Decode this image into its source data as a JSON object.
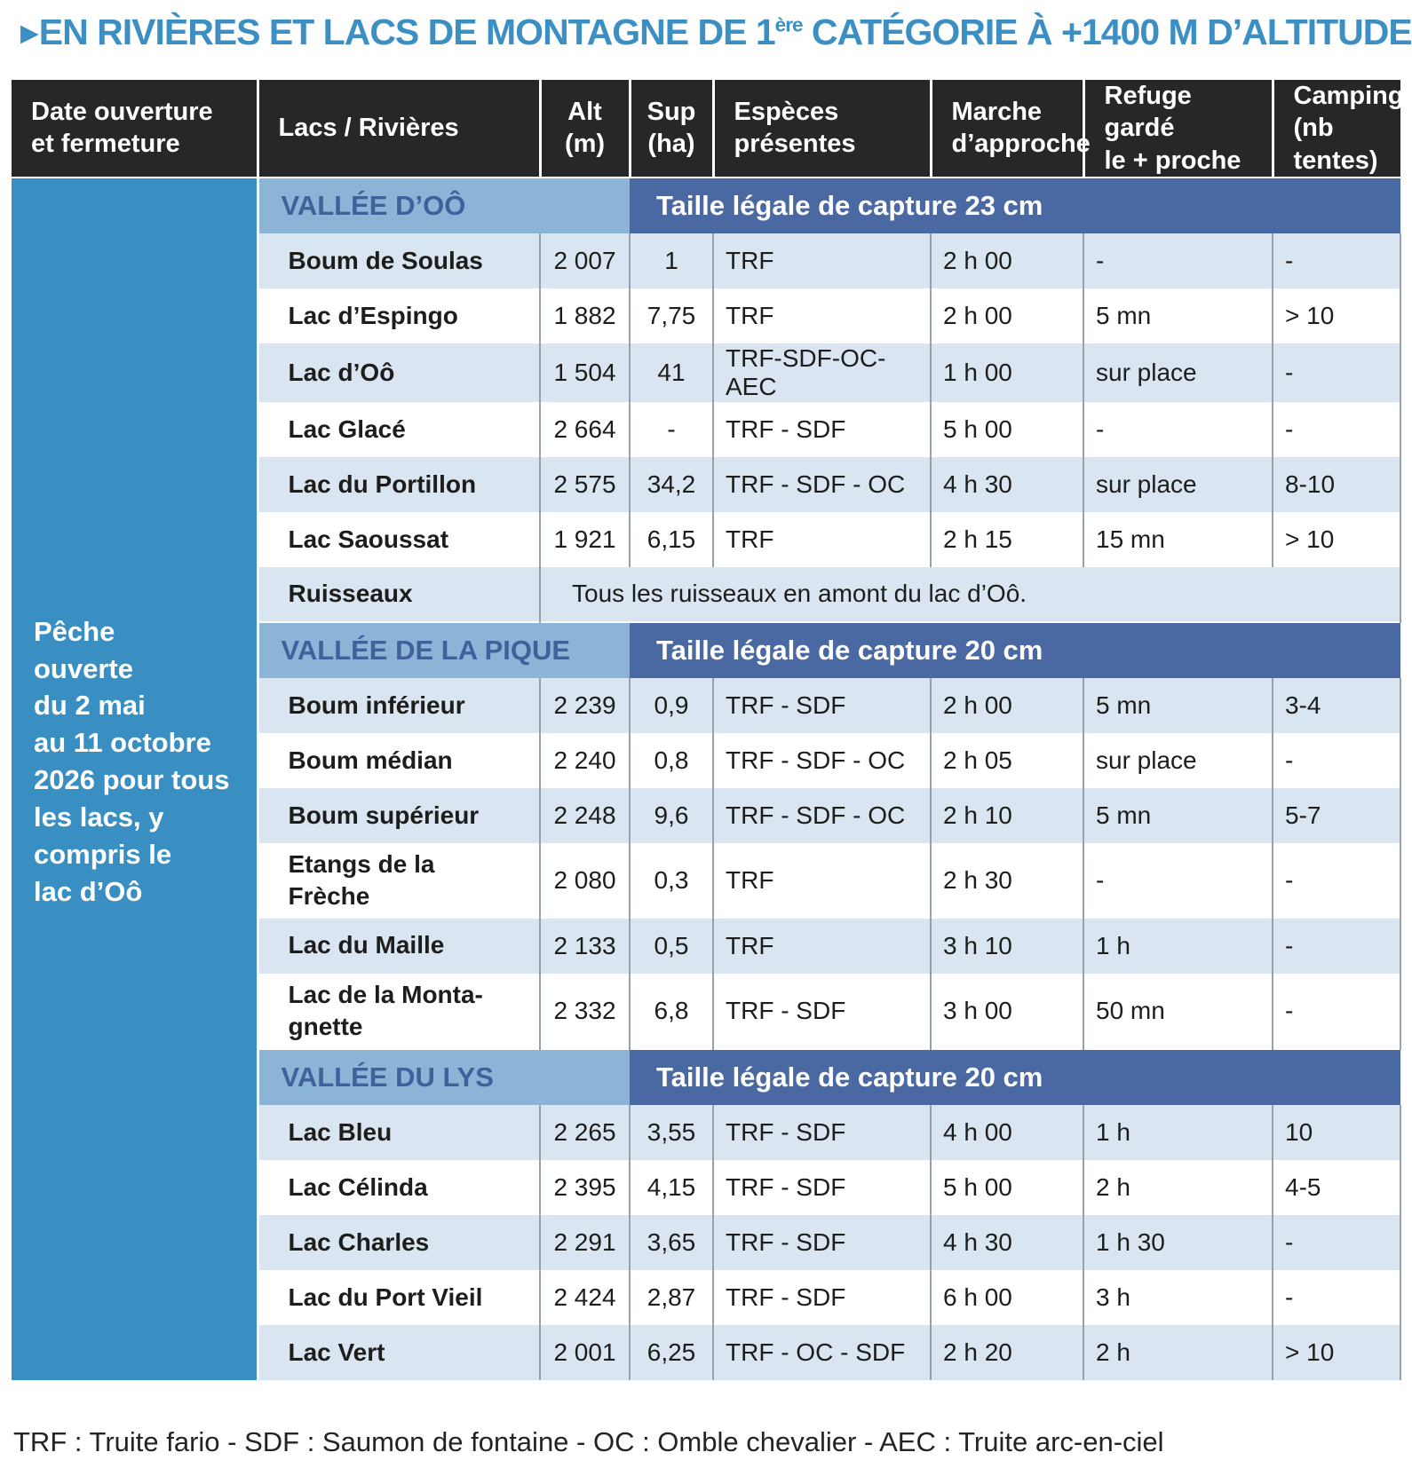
{
  "icons": {
    "title_arrow": "▶"
  },
  "colors": {
    "title_blue": "#3b8fc3",
    "header_black": "#272727",
    "date_column_blue": "#3a8fc2",
    "section_name_bg": "#8cb4d7",
    "section_name_text": "#40619c",
    "section_rule_bg": "#4a69a2",
    "row_shaded": "#d9e5f0"
  },
  "title": {
    "before_sup": "EN RIVIÈRES ET LACS DE MONTAGNE DE 1",
    "sup": "ère",
    "after_sup": " CATÉGORIE À +1400 M D’ALTITUDE"
  },
  "table": {
    "headers": [
      {
        "label": "Date ouverture\net fermeture"
      },
      {
        "label": "Lacs / Rivières"
      },
      {
        "label": "Alt\n(m)"
      },
      {
        "label": "Sup\n(ha)"
      },
      {
        "label": "Espèces\nprésentes"
      },
      {
        "label": "Marche\nd’approche"
      },
      {
        "label": "Refuge gardé\nle + proche"
      },
      {
        "label": "Camping\n(nb tentes)"
      }
    ],
    "date_note": "Pêche\nouverte\ndu 2 mai\nau 11 octobre\n2026 pour tous\nles lacs, y\ncompris le\nlac d’Oô",
    "sections": [
      {
        "name": "VALLÉE D’OÔ",
        "rule": "Taille légale de capture 23 cm",
        "rows": [
          {
            "name": "Boum de Soulas",
            "alt": "2 007",
            "sup": "1",
            "species": "TRF",
            "approach": "2 h 00",
            "refuge": "-",
            "camping": "-"
          },
          {
            "name": "Lac d’Espingo",
            "alt": "1 882",
            "sup": "7,75",
            "species": "TRF",
            "approach": "2 h 00",
            "refuge": "5 mn",
            "camping": "> 10"
          },
          {
            "name": "Lac d’Oô",
            "alt": "1 504",
            "sup": "41",
            "species": "TRF-SDF-OC-AEC",
            "approach": "1 h 00",
            "refuge": "sur place",
            "camping": "-"
          },
          {
            "name": "Lac Glacé",
            "alt": "2 664",
            "sup": "-",
            "species": "TRF - SDF",
            "approach": "5 h 00",
            "refuge": "-",
            "camping": "-"
          },
          {
            "name": "Lac du Portillon",
            "alt": "2 575",
            "sup": "34,2",
            "species": "TRF - SDF - OC",
            "approach": "4 h 30",
            "refuge": "sur place",
            "camping": "8-10"
          },
          {
            "name": "Lac Saoussat",
            "alt": "1 921",
            "sup": "6,15",
            "species": "TRF",
            "approach": "2 h 15",
            "refuge": "15 mn",
            "camping": "> 10"
          }
        ],
        "span_row": {
          "label": "Ruisseaux",
          "text": "Tous les ruisseaux en amont du lac d’Oô."
        }
      },
      {
        "name": "VALLÉE DE LA PIQUE",
        "rule": "Taille légale de capture 20 cm",
        "rows": [
          {
            "name": "Boum inférieur",
            "alt": "2 239",
            "sup": "0,9",
            "species": "TRF - SDF",
            "approach": "2 h 00",
            "refuge": "5 mn",
            "camping": "3-4"
          },
          {
            "name": "Boum médian",
            "alt": "2 240",
            "sup": "0,8",
            "species": "TRF - SDF - OC",
            "approach": "2 h 05",
            "refuge": "sur place",
            "camping": "-"
          },
          {
            "name": "Boum supérieur",
            "alt": "2 248",
            "sup": "9,6",
            "species": "TRF - SDF - OC",
            "approach": "2 h 10",
            "refuge": "5 mn",
            "camping": "5-7"
          },
          {
            "name": "Etangs de la\nFrèche",
            "alt": "2 080",
            "sup": "0,3",
            "species": "TRF",
            "approach": "2 h 30",
            "refuge": "-",
            "camping": "-"
          },
          {
            "name": "Lac du Maille",
            "alt": "2 133",
            "sup": "0,5",
            "species": "TRF",
            "approach": "3 h 10",
            "refuge": "1 h",
            "camping": "-"
          },
          {
            "name": "Lac de la Monta-\ngnette",
            "alt": "2 332",
            "sup": "6,8",
            "species": "TRF - SDF",
            "approach": "3 h 00",
            "refuge": "50 mn",
            "camping": "-"
          }
        ]
      },
      {
        "name": "VALLÉE DU LYS",
        "rule": "Taille légale de capture 20 cm",
        "rows": [
          {
            "name": "Lac Bleu",
            "alt": "2 265",
            "sup": "3,55",
            "species": "TRF - SDF",
            "approach": "4 h 00",
            "refuge": "1 h",
            "camping": "10"
          },
          {
            "name": "Lac Célinda",
            "alt": "2 395",
            "sup": "4,15",
            "species": "TRF - SDF",
            "approach": "5 h 00",
            "refuge": "2 h",
            "camping": "4-5"
          },
          {
            "name": "Lac Charles",
            "alt": "2 291",
            "sup": "3,65",
            "species": "TRF - SDF",
            "approach": "4 h 30",
            "refuge": "1 h 30",
            "camping": "-"
          },
          {
            "name": "Lac du Port Vieil",
            "alt": "2 424",
            "sup": "2,87",
            "species": "TRF - SDF",
            "approach": "6 h 00",
            "refuge": "3 h",
            "camping": "-"
          },
          {
            "name": "Lac Vert",
            "alt": "2 001",
            "sup": "6,25",
            "species": "TRF - OC - SDF",
            "approach": "2 h 20",
            "refuge": "2 h",
            "camping": "> 10"
          }
        ]
      }
    ]
  },
  "footer": "TRF : Truite fario - SDF : Saumon de fontaine - OC : Omble chevalier - AEC : Truite arc-en-ciel"
}
